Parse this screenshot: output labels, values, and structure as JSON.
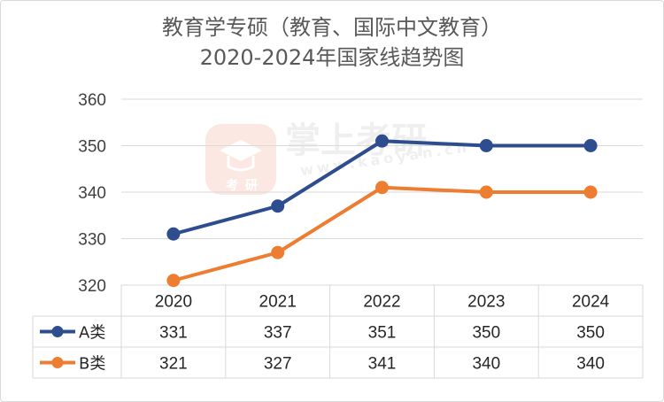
{
  "title_lines": [
    "教育学专硕（教育、国际中文教育）",
    "2020-2024年国家线趋势图"
  ],
  "watermark": {
    "brand": "掌上考研",
    "url": "www.kaoyan.cn",
    "badge": [
      "考",
      "研"
    ]
  },
  "colors": {
    "a": "#2e4d8f",
    "b": "#ed7d31",
    "grid": "#d9d9d9",
    "text": "#404040"
  },
  "chart_data": {
    "type": "line",
    "title": "教育学专硕（教育、国际中文教育） 2020-2024年国家线趋势图",
    "categories": [
      "2020",
      "2021",
      "2022",
      "2023",
      "2024"
    ],
    "series": [
      {
        "name": "A类",
        "values": [
          331,
          337,
          351,
          350,
          350
        ]
      },
      {
        "name": "B类",
        "values": [
          321,
          327,
          341,
          340,
          340
        ]
      }
    ],
    "yticks": [
      320,
      330,
      340,
      350,
      360
    ],
    "ylim": [
      320,
      360
    ],
    "grid": true,
    "data_table": true
  }
}
